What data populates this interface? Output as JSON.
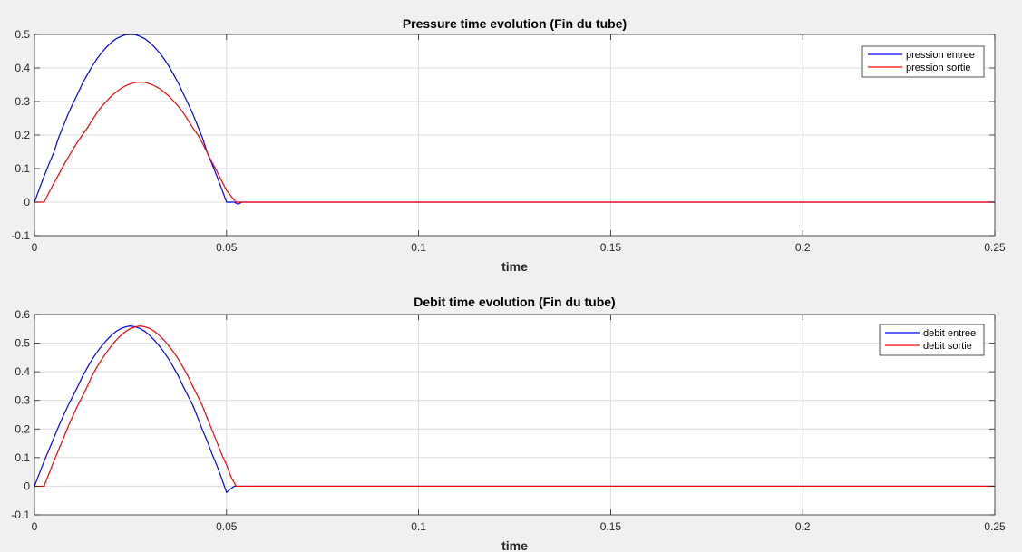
{
  "chart_data": [
    {
      "type": "line",
      "title": "Pressure time evolution (Fin du tube)",
      "xlabel": "time",
      "ylabel": "",
      "xlim": [
        0,
        0.25
      ],
      "ylim": [
        -0.1,
        0.5
      ],
      "xticks": [
        0,
        0.05,
        0.1,
        0.15,
        0.2,
        0.25
      ],
      "xtick_labels": [
        "0",
        "0.05",
        "0.1",
        "0.15",
        "0.2",
        "0.25"
      ],
      "yticks": [
        -0.1,
        0,
        0.1,
        0.2,
        0.3,
        0.4,
        0.5
      ],
      "ytick_labels": [
        "-0.1",
        "0",
        "0.1",
        "0.2",
        "0.3",
        "0.4",
        "0.5"
      ],
      "grid": true,
      "legend_position": "top-right",
      "series": [
        {
          "name": "pression entree",
          "color": "#0000ff",
          "x": [
            0,
            0.00125,
            0.0025,
            0.00375,
            0.005,
            0.00625,
            0.0075,
            0.00875,
            0.01,
            0.01125,
            0.0125,
            0.01375,
            0.015,
            0.01625,
            0.0175,
            0.01875,
            0.02,
            0.02125,
            0.0225,
            0.02375,
            0.025,
            0.02625,
            0.0275,
            0.02875,
            0.03,
            0.03125,
            0.0325,
            0.03375,
            0.035,
            0.03625,
            0.0375,
            0.03875,
            0.04,
            0.04125,
            0.0425,
            0.04375,
            0.045,
            0.04625,
            0.0475,
            0.04875,
            0.05,
            0.051,
            0.052,
            0.053,
            0.054,
            0.055,
            0.06,
            0.1,
            0.15,
            0.2,
            0.25
          ],
          "values": [
            0,
            0.039,
            0.077,
            0.113,
            0.147,
            0.191,
            0.227,
            0.262,
            0.294,
            0.323,
            0.354,
            0.38,
            0.405,
            0.427,
            0.446,
            0.462,
            0.476,
            0.487,
            0.494,
            0.499,
            0.5,
            0.499,
            0.494,
            0.487,
            0.476,
            0.462,
            0.446,
            0.427,
            0.405,
            0.38,
            0.354,
            0.323,
            0.294,
            0.262,
            0.227,
            0.191,
            0.147,
            0.113,
            0.077,
            0.039,
            0,
            0,
            0,
            -0.006,
            0,
            0,
            0,
            0,
            0,
            0,
            0
          ]
        },
        {
          "name": "pression sortie",
          "color": "#ff0000",
          "x": [
            0,
            0.0025,
            0.00375,
            0.005,
            0.00625,
            0.0075,
            0.00875,
            0.01,
            0.01125,
            0.0125,
            0.01375,
            0.015,
            0.01625,
            0.0175,
            0.01875,
            0.02,
            0.02125,
            0.0225,
            0.02375,
            0.025,
            0.02625,
            0.0275,
            0.02875,
            0.03,
            0.03125,
            0.0325,
            0.03375,
            0.035,
            0.03625,
            0.0375,
            0.03875,
            0.04,
            0.04125,
            0.0425,
            0.04375,
            0.045,
            0.04625,
            0.0475,
            0.04875,
            0.05,
            0.05125,
            0.0525,
            0.06,
            0.1,
            0.15,
            0.2,
            0.25
          ],
          "values": [
            0,
            0,
            0.028,
            0.055,
            0.081,
            0.108,
            0.133,
            0.157,
            0.18,
            0.201,
            0.221,
            0.244,
            0.266,
            0.285,
            0.301,
            0.316,
            0.328,
            0.339,
            0.347,
            0.353,
            0.357,
            0.358,
            0.357,
            0.353,
            0.347,
            0.339,
            0.328,
            0.316,
            0.301,
            0.285,
            0.266,
            0.244,
            0.221,
            0.201,
            0.175,
            0.147,
            0.118,
            0.092,
            0.063,
            0.035,
            0.017,
            0,
            0,
            0,
            0,
            0,
            0
          ]
        }
      ]
    },
    {
      "type": "line",
      "title": "Debit time evolution (Fin du tube)",
      "xlabel": "time",
      "ylabel": "",
      "xlim": [
        0,
        0.25
      ],
      "ylim": [
        -0.1,
        0.6
      ],
      "xticks": [
        0,
        0.05,
        0.1,
        0.15,
        0.2,
        0.25
      ],
      "xtick_labels": [
        "0",
        "0.05",
        "0.1",
        "0.15",
        "0.2",
        "0.25"
      ],
      "yticks": [
        -0.1,
        0,
        0.1,
        0.2,
        0.3,
        0.4,
        0.5,
        0.6
      ],
      "ytick_labels": [
        "-0.1",
        "0",
        "0.1",
        "0.2",
        "0.3",
        "0.4",
        "0.5",
        "0.6"
      ],
      "grid": true,
      "legend_position": "top-right",
      "series": [
        {
          "name": "debit entree",
          "color": "#0000ff",
          "x": [
            0,
            0.00125,
            0.0025,
            0.00375,
            0.005,
            0.00625,
            0.0075,
            0.00875,
            0.01,
            0.01125,
            0.0125,
            0.01375,
            0.015,
            0.01625,
            0.0175,
            0.01875,
            0.02,
            0.02125,
            0.0225,
            0.02375,
            0.025,
            0.02625,
            0.0275,
            0.02875,
            0.03,
            0.03125,
            0.0325,
            0.03375,
            0.035,
            0.03625,
            0.0375,
            0.03875,
            0.04,
            0.04125,
            0.0425,
            0.04375,
            0.045,
            0.04625,
            0.0475,
            0.04875,
            0.05,
            0.051,
            0.052,
            0.053,
            0.054,
            0.055,
            0.06,
            0.1,
            0.15,
            0.2,
            0.25
          ],
          "values": [
            0,
            0.044,
            0.087,
            0.127,
            0.167,
            0.208,
            0.246,
            0.282,
            0.315,
            0.348,
            0.384,
            0.414,
            0.443,
            0.468,
            0.49,
            0.51,
            0.527,
            0.541,
            0.551,
            0.557,
            0.56,
            0.557,
            0.551,
            0.541,
            0.527,
            0.51,
            0.49,
            0.468,
            0.443,
            0.414,
            0.384,
            0.348,
            0.315,
            0.282,
            0.24,
            0.196,
            0.157,
            0.112,
            0.072,
            0.027,
            -0.022,
            -0.01,
            0,
            0,
            0,
            0,
            0,
            0,
            0,
            0,
            0
          ]
        },
        {
          "name": "debit sortie",
          "color": "#ff0000",
          "x": [
            0,
            0.0025,
            0.00375,
            0.005,
            0.00625,
            0.0075,
            0.00875,
            0.01,
            0.01125,
            0.0125,
            0.01375,
            0.015,
            0.01625,
            0.0175,
            0.01875,
            0.02,
            0.02125,
            0.0225,
            0.02375,
            0.025,
            0.02625,
            0.0275,
            0.02875,
            0.03,
            0.03125,
            0.0325,
            0.03375,
            0.035,
            0.03625,
            0.0375,
            0.03875,
            0.04,
            0.04125,
            0.0425,
            0.04375,
            0.045,
            0.04625,
            0.0475,
            0.04875,
            0.05,
            0.05125,
            0.0525,
            0.06,
            0.1,
            0.15,
            0.2,
            0.25
          ],
          "values": [
            0,
            0,
            0.043,
            0.086,
            0.126,
            0.166,
            0.208,
            0.246,
            0.282,
            0.315,
            0.349,
            0.386,
            0.416,
            0.443,
            0.468,
            0.49,
            0.51,
            0.527,
            0.541,
            0.551,
            0.557,
            0.56,
            0.557,
            0.551,
            0.541,
            0.527,
            0.51,
            0.49,
            0.468,
            0.443,
            0.414,
            0.384,
            0.348,
            0.315,
            0.28,
            0.237,
            0.196,
            0.154,
            0.111,
            0.075,
            0.03,
            0,
            0,
            0,
            0,
            0,
            0
          ]
        }
      ]
    }
  ]
}
